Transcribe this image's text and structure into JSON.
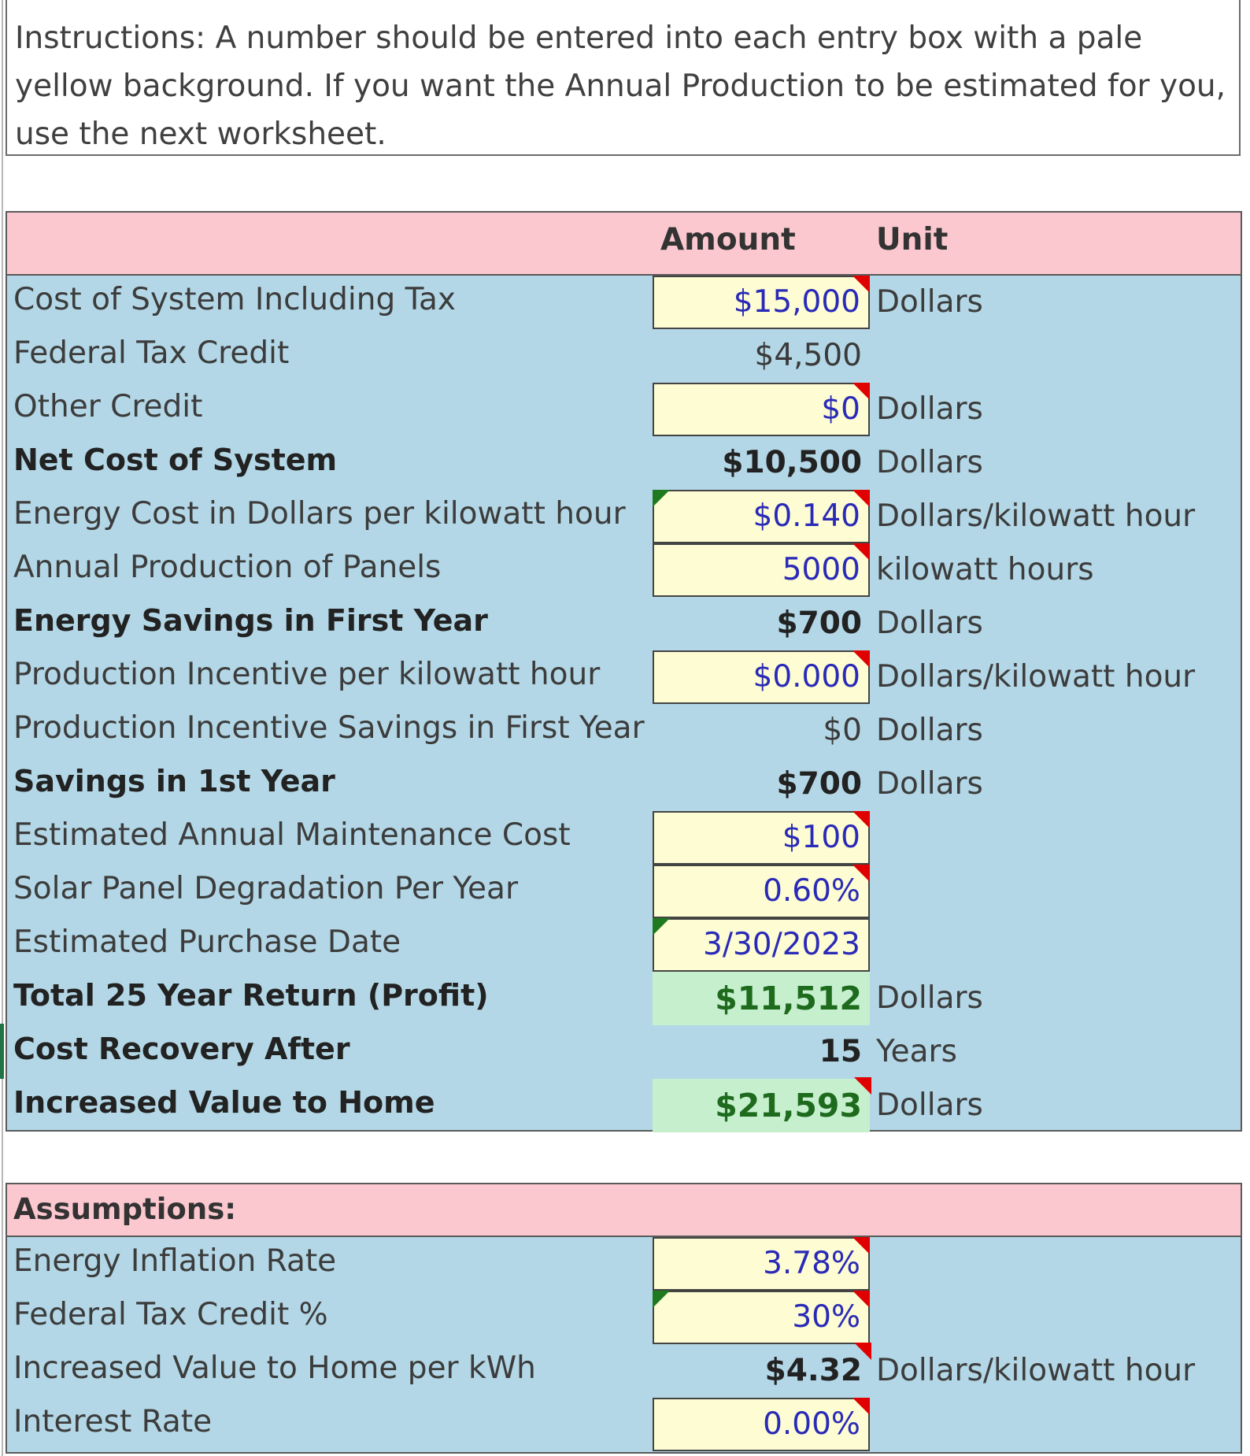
{
  "instructions": "Instructions: A number should be entered into each entry box with a pale yellow background.  If you want the Annual Production to be estimated for you, use the next worksheet.",
  "header": {
    "amount": "Amount",
    "unit": "Unit"
  },
  "rows": [
    {
      "label": "Cost of System Including Tax",
      "value": "$15,000",
      "unit": "Dollars"
    },
    {
      "label": "Federal Tax Credit",
      "value": "$4,500",
      "unit": ""
    },
    {
      "label": "Other Credit",
      "value": "$0",
      "unit": "Dollars"
    },
    {
      "label": "Net Cost of System",
      "value": "$10,500",
      "unit": "Dollars"
    },
    {
      "label": "Energy Cost in Dollars per kilowatt hour",
      "value": "$0.140",
      "unit": "Dollars/kilowatt hour"
    },
    {
      "label": "Annual Production of Panels",
      "value": "5000",
      "unit": "kilowatt hours"
    },
    {
      "label": "Energy Savings in First Year",
      "value": "$700",
      "unit": "Dollars"
    },
    {
      "label": "Production Incentive per kilowatt hour",
      "value": "$0.000",
      "unit": "Dollars/kilowatt hour"
    },
    {
      "label": "Production Incentive Savings in First Year",
      "value": "$0",
      "unit": "Dollars"
    },
    {
      "label": "Savings in 1st Year",
      "value": "$700",
      "unit": "Dollars"
    },
    {
      "label": "Estimated Annual Maintenance Cost",
      "value": "$100",
      "unit": ""
    },
    {
      "label": "Solar Panel Degradation Per Year",
      "value": "0.60%",
      "unit": ""
    },
    {
      "label": "Estimated Purchase Date",
      "value": "3/30/2023",
      "unit": ""
    },
    {
      "label": "Total 25 Year Return (Profit)",
      "value": "$11,512",
      "unit": "Dollars"
    },
    {
      "label": "Cost Recovery After",
      "value": "15",
      "unit": "Years"
    },
    {
      "label": "Increased Value to Home",
      "value": "$21,593",
      "unit": "Dollars"
    }
  ],
  "assumptions": {
    "title": "Assumptions:",
    "rows": [
      {
        "label": "Energy Inflation Rate",
        "value": "3.78%",
        "unit": ""
      },
      {
        "label": "Federal Tax Credit %",
        "value": "30%",
        "unit": ""
      },
      {
        "label": "Increased Value to Home per kWh",
        "value": "$4.32",
        "unit": "Dollars/kilowatt hour"
      },
      {
        "label": "Interest Rate",
        "value": "0.00%",
        "unit": ""
      }
    ]
  },
  "colors": {
    "input_fill": "#fdfcd2",
    "panel_fill": "#b3d7e6",
    "header_fill": "#fcc8d0",
    "result_fill": "#c6efce",
    "comment_marker": "#e00000",
    "error_marker": "#1f7a1f"
  }
}
